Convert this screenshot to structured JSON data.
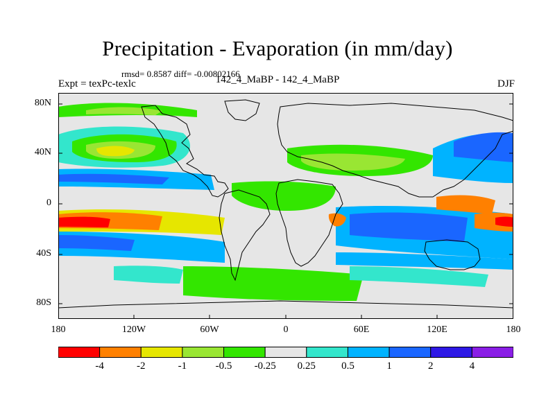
{
  "title": "Precipitation - Evaporation (in mm/day)",
  "stats_line": "rmsd= 0.8587 diff= -0.00802166",
  "left_label": "Expt = texPc-texlc",
  "center_label": "142_4_MaBP - 142_4_MaBP",
  "right_label": "DJF",
  "colors": {
    "land": "#e6e6e6",
    "bins": [
      "#ff0000",
      "#ff8000",
      "#e6e600",
      "#99e633",
      "#33e600",
      "#e6e6e6",
      "#33e6cc",
      "#00b3ff",
      "#1a66ff",
      "#2e19e6",
      "#8a1ee6"
    ]
  },
  "y_ticks": [
    "80N",
    "40N",
    "0",
    "40S",
    "80S"
  ],
  "x_ticks": [
    "180",
    "120W",
    "60W",
    "0",
    "60E",
    "120E",
    "180"
  ],
  "legend_labels": [
    "-4",
    "-2",
    "-1",
    "-0.5",
    "-0.25",
    "0.25",
    "0.5",
    "1",
    "2",
    "4"
  ]
}
